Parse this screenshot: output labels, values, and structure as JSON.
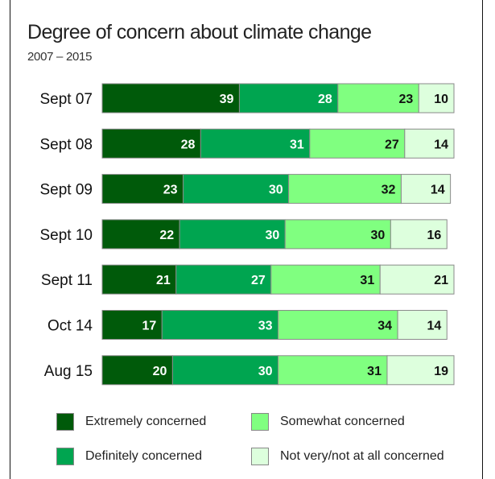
{
  "chart_data": {
    "type": "bar",
    "orientation": "horizontal",
    "stacked": true,
    "title": "Degree of concern about climate change",
    "subtitle": "2007 – 2015",
    "categories": [
      "Sept 07",
      "Sept 08",
      "Sept 09",
      "Sept 10",
      "Sept 11",
      "Oct 14",
      "Aug 15"
    ],
    "series": [
      {
        "name": "Extremely concerned",
        "color": "#005a0a",
        "label_color": "#ffffff",
        "values": [
          39,
          28,
          23,
          22,
          21,
          17,
          20
        ]
      },
      {
        "name": "Definitely concerned",
        "color": "#00a550",
        "label_color": "#ffffff",
        "values": [
          28,
          31,
          30,
          30,
          27,
          33,
          30
        ]
      },
      {
        "name": "Somewhat concerned",
        "color": "#80ff80",
        "label_color": "#111111",
        "values": [
          23,
          27,
          32,
          30,
          31,
          34,
          31
        ]
      },
      {
        "name": "Not very/not at all concerned",
        "color": "#ddffdd",
        "label_color": "#111111",
        "values": [
          10,
          14,
          14,
          16,
          21,
          14,
          19
        ]
      }
    ],
    "legend_position": "bottom",
    "grid": false
  }
}
